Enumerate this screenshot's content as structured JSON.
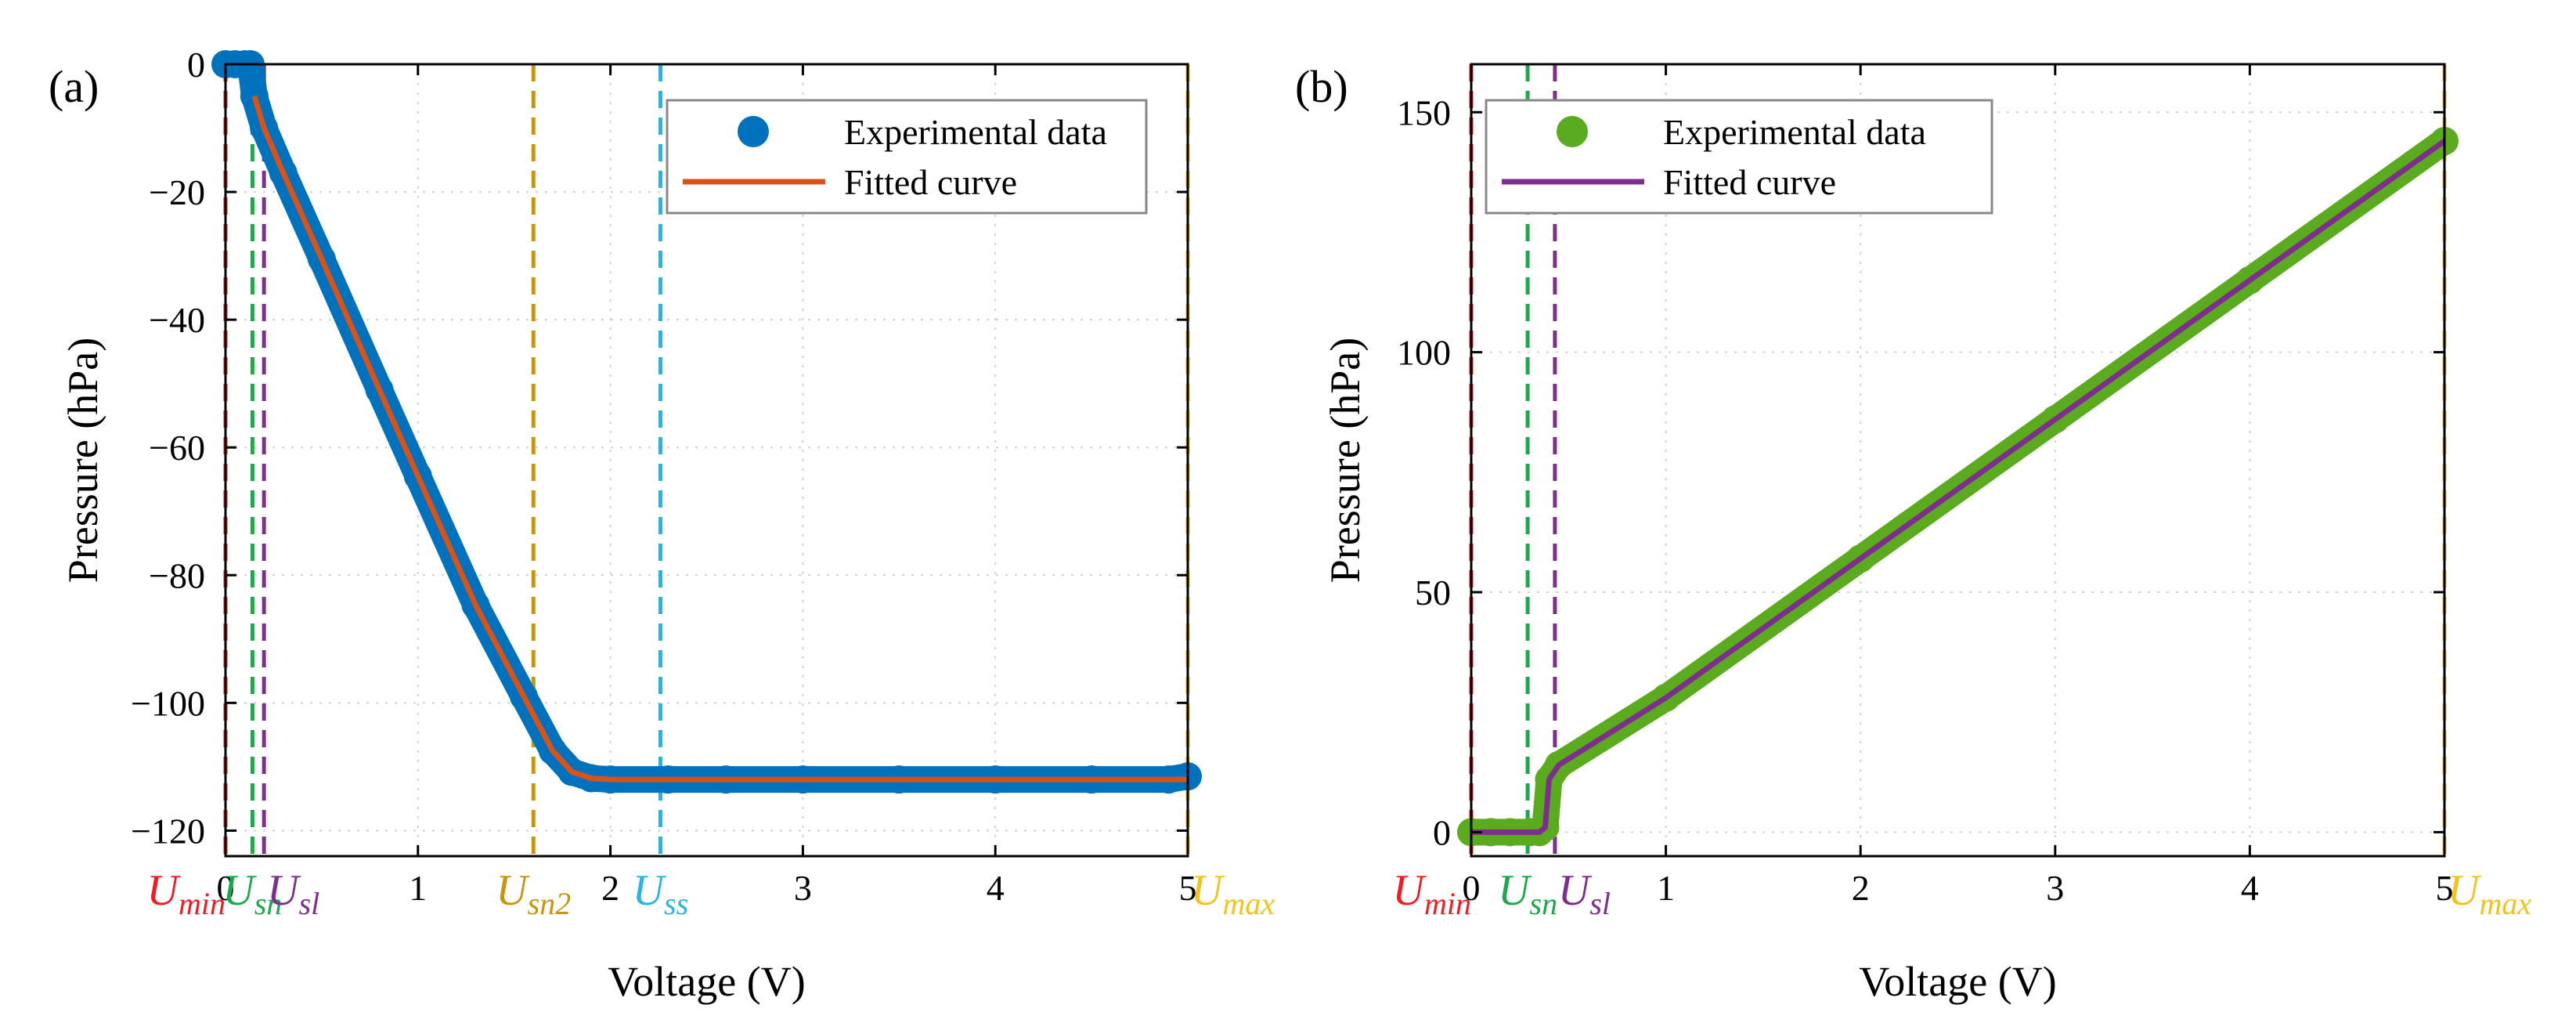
{
  "chart_data": [
    {
      "panel_label": "(a)",
      "type": "scatter",
      "xlabel": "Voltage (V)",
      "ylabel": "Pressure (hPa)",
      "xlim": [
        0,
        5
      ],
      "ylim": [
        -124,
        0
      ],
      "xticks": [
        0,
        1,
        2,
        3,
        4,
        5
      ],
      "yticks": [
        0,
        -20,
        -40,
        -60,
        -80,
        -100,
        -120
      ],
      "xtick_labels": [
        "0",
        "1",
        "2",
        "3",
        "4",
        "5"
      ],
      "ytick_labels": [
        "0",
        "−20",
        "−40",
        "−60",
        "−80",
        "−100",
        "−120"
      ],
      "grid": true,
      "legend": {
        "position": "top-right",
        "entries": [
          {
            "label": "Experimental data",
            "color": "#0072BD",
            "kind": "marker"
          },
          {
            "label": "Fitted curve",
            "color": "#D95319",
            "kind": "line"
          }
        ]
      },
      "series": [
        {
          "name": "Experimental data",
          "color": "#0072BD",
          "x": [
            0,
            0.05,
            0.1,
            0.13,
            0.15,
            0.2,
            0.3,
            0.5,
            0.8,
            1.0,
            1.3,
            1.55,
            1.7,
            1.8,
            1.9,
            2.0,
            2.3,
            2.6,
            3.0,
            3.5,
            4.0,
            4.5,
            4.9,
            5.0
          ],
          "y": [
            0,
            0,
            0,
            0,
            -5,
            -10,
            -17,
            -30.5,
            -51,
            -64.5,
            -84.7,
            -99,
            -107.5,
            -110.8,
            -111.8,
            -112,
            -112,
            -112,
            -112,
            -112,
            -112,
            -112,
            -112,
            -111.5
          ]
        },
        {
          "name": "Fitted curve",
          "color": "#D95319",
          "x": [
            0.15,
            0.2,
            0.3,
            0.5,
            0.8,
            1.0,
            1.3,
            1.55,
            1.7,
            1.8,
            1.9,
            2.0,
            2.5,
            3.0,
            4.0,
            5.0
          ],
          "y": [
            -5,
            -10,
            -17,
            -30.5,
            -51,
            -64.5,
            -84.7,
            -99,
            -107.5,
            -110.8,
            -111.8,
            -112,
            -112,
            -112,
            -112,
            -112
          ]
        }
      ],
      "markers": [
        {
          "main": "U",
          "sub": "min",
          "x": 0.0,
          "color": "#EE1D23",
          "anchor": "end"
        },
        {
          "main": "U",
          "sub": "sn",
          "x": 0.14,
          "color": "#1BA94C",
          "anchor": "middle"
        },
        {
          "main": "U",
          "sub": "sl",
          "x": 0.2,
          "color": "#7E2F8E",
          "anchor": "start"
        },
        {
          "main": "U",
          "sub": "sn2",
          "x": 1.6,
          "color": "#C8960C",
          "anchor": "middle"
        },
        {
          "main": "U",
          "sub": "ss",
          "x": 2.26,
          "color": "#28B4E6",
          "anchor": "middle"
        },
        {
          "main": "U",
          "sub": "max",
          "x": 5.0,
          "color": "#F2C318",
          "anchor": "start"
        }
      ]
    },
    {
      "panel_label": "(b)",
      "type": "scatter",
      "xlabel": "Voltage (V)",
      "ylabel": "Pressure (hPa)",
      "xlim": [
        0,
        5
      ],
      "ylim": [
        -5,
        160
      ],
      "xticks": [
        0,
        1,
        2,
        3,
        4,
        5
      ],
      "yticks": [
        0,
        50,
        100,
        150
      ],
      "xtick_labels": [
        "0",
        "1",
        "2",
        "3",
        "4",
        "5"
      ],
      "ytick_labels": [
        "0",
        "50",
        "100",
        "150"
      ],
      "grid": true,
      "legend": {
        "position": "top-left",
        "entries": [
          {
            "label": "Experimental data",
            "color": "#5AAB1E",
            "kind": "marker"
          },
          {
            "label": "Fitted curve",
            "color": "#7E2F8E",
            "kind": "line"
          }
        ]
      },
      "series": [
        {
          "name": "Experimental data",
          "color": "#5AAB1E",
          "x": [
            0,
            0.1,
            0.2,
            0.3,
            0.35,
            0.38,
            0.4,
            0.45,
            1.0,
            2.0,
            3.0,
            4.0,
            5.0
          ],
          "y": [
            0,
            0,
            0,
            0,
            0,
            1,
            11,
            14,
            28,
            57,
            86,
            115,
            144
          ]
        },
        {
          "name": "Fitted curve",
          "color": "#7E2F8E",
          "x": [
            0,
            0.1,
            0.2,
            0.3,
            0.35,
            0.38,
            0.4,
            0.45,
            1.0,
            2.0,
            3.0,
            4.0,
            5.0
          ],
          "y": [
            0,
            0,
            0,
            0,
            0,
            1,
            11,
            14,
            28,
            57,
            86,
            115,
            144
          ]
        }
      ],
      "markers": [
        {
          "main": "U",
          "sub": "min",
          "x": 0.0,
          "color": "#EE1D23",
          "anchor": "end"
        },
        {
          "main": "U",
          "sub": "sn",
          "x": 0.29,
          "color": "#1BA94C",
          "anchor": "middle"
        },
        {
          "main": "U",
          "sub": "sl",
          "x": 0.43,
          "color": "#7E2F8E",
          "anchor": "start"
        },
        {
          "main": "U",
          "sub": "max",
          "x": 5.0,
          "color": "#F2C318",
          "anchor": "start"
        }
      ]
    }
  ]
}
